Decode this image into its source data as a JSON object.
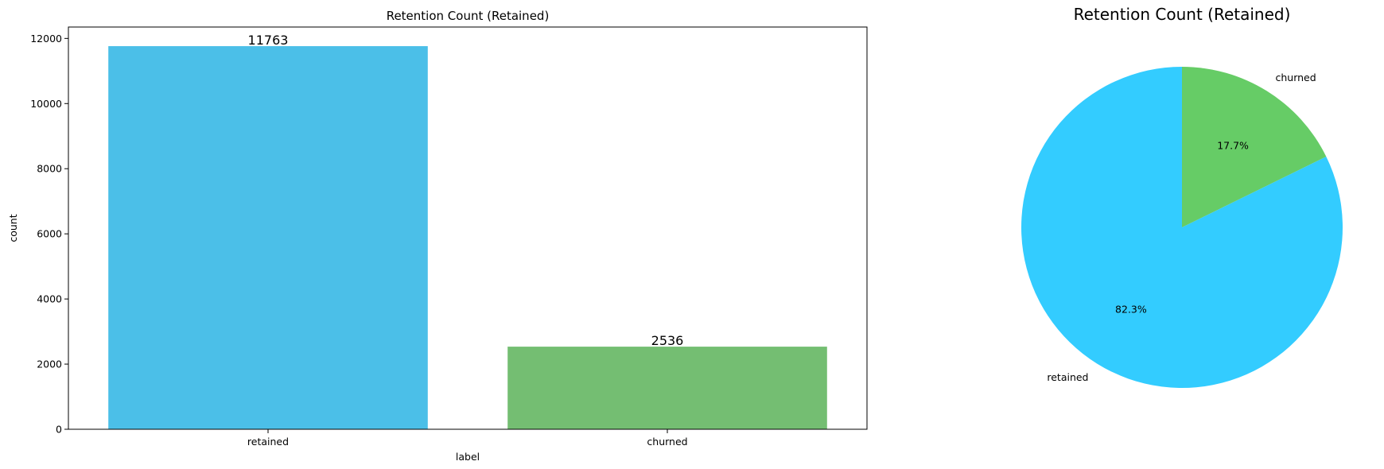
{
  "chart_data": [
    {
      "type": "bar",
      "title": "Retention Count (Retained)",
      "xlabel": "label",
      "ylabel": "count",
      "categories": [
        "retained",
        "churned"
      ],
      "values": [
        11763,
        2536
      ],
      "data_labels": [
        "11763",
        "2536"
      ],
      "ylim": [
        0,
        12350
      ],
      "yticks": [
        0,
        2000,
        4000,
        6000,
        8000,
        10000,
        12000
      ],
      "ytick_labels": [
        "0",
        "2000",
        "4000",
        "6000",
        "8000",
        "10000",
        "12000"
      ],
      "colors": [
        "#4bbfe8",
        "#74be72"
      ],
      "grid": false,
      "legend": "none"
    },
    {
      "type": "pie",
      "title": "Retention Count (Retained)",
      "categories": [
        "retained",
        "churned"
      ],
      "values": [
        11763,
        2536
      ],
      "percent_labels": [
        "82.3%",
        "17.7%"
      ],
      "colors": [
        "#33ccff",
        "#66cc66"
      ],
      "start_angle_deg": 90,
      "direction": "counterclockwise",
      "legend": "none"
    }
  ]
}
